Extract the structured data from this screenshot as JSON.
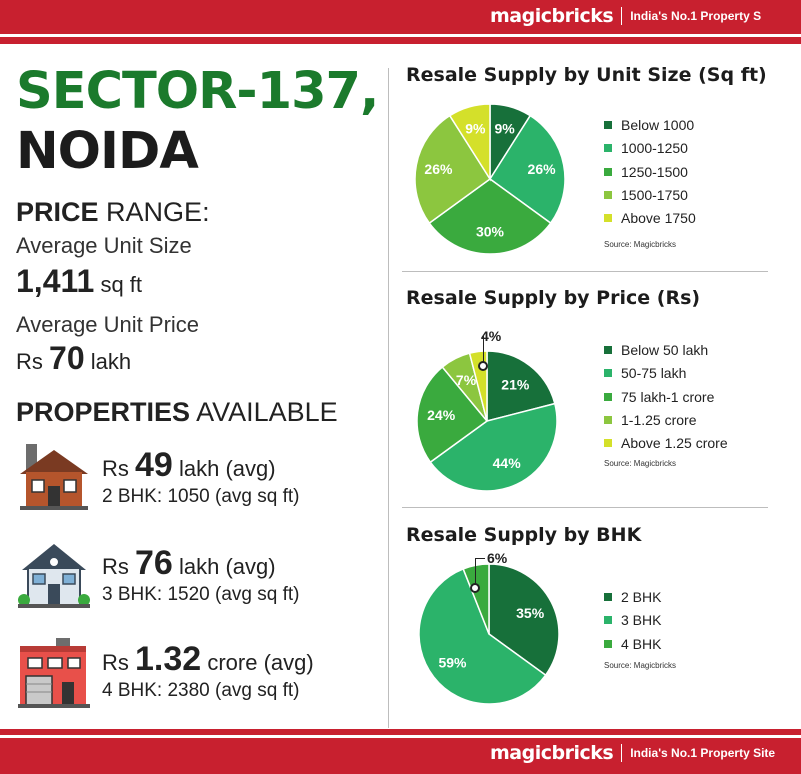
{
  "brand": {
    "name": "magicbricks",
    "tagline_top": "India's No.1 Property S",
    "tagline_bottom": "India's No.1 Property Site"
  },
  "locality": {
    "line1": "SECTOR-137,",
    "line2": "NOIDA"
  },
  "price_range": {
    "heading_bold": "PRICE",
    "heading_rest": "RANGE:",
    "avg_size_label": "Average Unit Size",
    "avg_size_value": "1,411",
    "avg_size_unit": "sq ft",
    "avg_price_label": "Average Unit Price",
    "avg_price_prefix": "Rs",
    "avg_price_value": "70",
    "avg_price_unit": "lakh"
  },
  "properties": {
    "heading_bold": "PROPERTIES",
    "heading_rest": "AVAILABLE",
    "items": [
      {
        "icon": "brown-house-icon",
        "prefix": "Rs",
        "price": "49",
        "suffix": "lakh (avg)",
        "detail": "2 BHK: 1050 (avg sq ft)"
      },
      {
        "icon": "blue-house-icon",
        "prefix": "Rs",
        "price": "76",
        "suffix": "lakh (avg)",
        "detail": "3 BHK: 1520 (avg sq ft)"
      },
      {
        "icon": "red-building-icon",
        "prefix": "Rs",
        "price": "1.32",
        "suffix": "crore (avg)",
        "detail": "4 BHK: 2380 (avg sq ft)"
      }
    ]
  },
  "chart_data": [
    {
      "type": "pie",
      "title": "Resale Supply by Unit Size (Sq ft)",
      "categories": [
        "Below 1000",
        "1000-1250",
        "1250-1500",
        "1500-1750",
        "Above 1750"
      ],
      "values": [
        9,
        26,
        30,
        26,
        9
      ],
      "labels": [
        "9%",
        "26%",
        "30%",
        "26%",
        "9%"
      ],
      "colors": [
        "#17703a",
        "#2bb36a",
        "#3aaa3e",
        "#8cc63f",
        "#d4e02a"
      ],
      "source": "Source: Magicbricks",
      "legend": "right"
    },
    {
      "type": "pie",
      "title": "Resale Supply by Price (Rs)",
      "categories": [
        "Below 50 lakh",
        "50-75 lakh",
        "75 lakh-1 crore",
        "1-1.25 crore",
        "Above 1.25 crore"
      ],
      "values": [
        21,
        44,
        24,
        7,
        4
      ],
      "labels": [
        "21%",
        "44%",
        "24%",
        "7%",
        "4%"
      ],
      "colors": [
        "#17703a",
        "#2bb36a",
        "#3aaa3e",
        "#8cc63f",
        "#d4e02a"
      ],
      "source": "Source: Magicbricks",
      "legend": "right"
    },
    {
      "type": "pie",
      "title": "Resale Supply by BHK",
      "categories": [
        "2 BHK",
        "3 BHK",
        "4 BHK"
      ],
      "values": [
        35,
        59,
        6
      ],
      "labels": [
        "35%",
        "59%",
        "6%"
      ],
      "colors": [
        "#17703a",
        "#2bb36a",
        "#3aaa3e"
      ],
      "source": "Source: Magicbricks",
      "legend": "right"
    }
  ]
}
